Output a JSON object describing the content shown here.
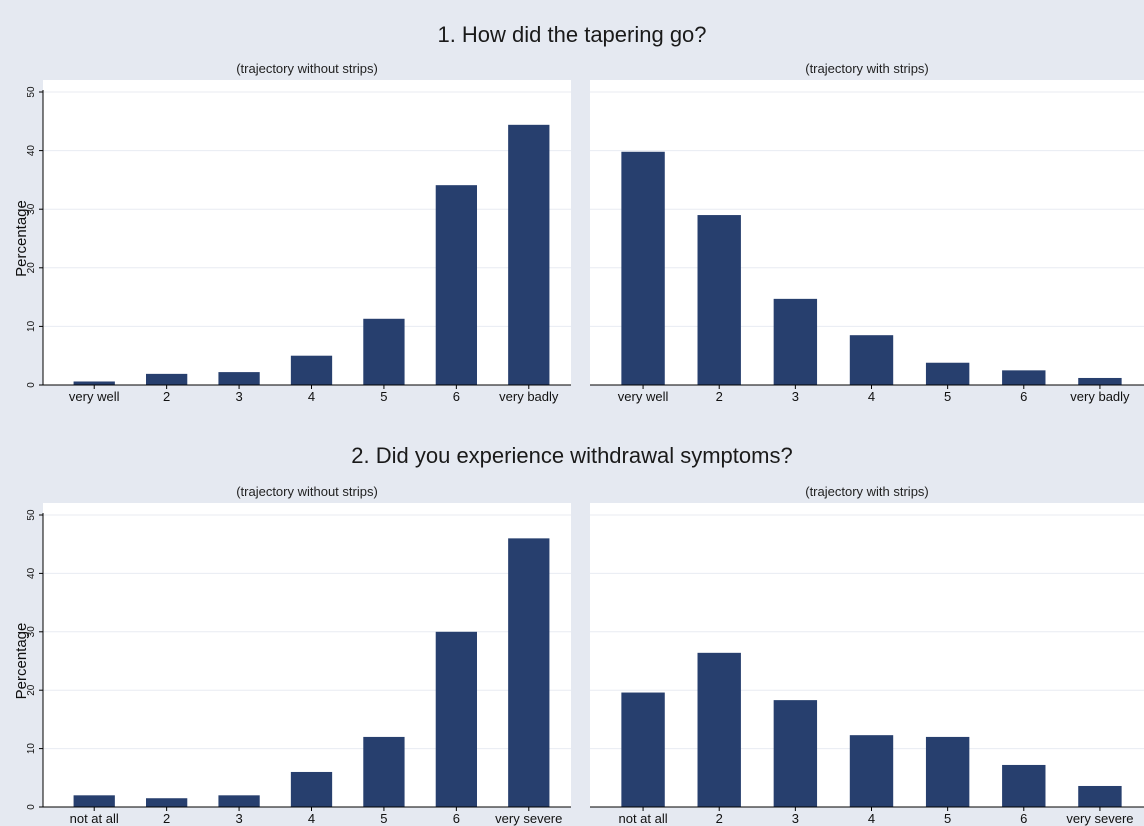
{
  "colors": {
    "background": "#e5e9f1",
    "plot_background": "#ffffff",
    "bar": "#273f6e",
    "gridline": "#e8ebf2",
    "axis": "#000000"
  },
  "chart_data": [
    {
      "type": "bar",
      "title": "1. How did the tapering go?",
      "subtitle": "(trajectory without strips)",
      "ylabel": "Percentage",
      "ylim": [
        0,
        50
      ],
      "yticks": [
        0,
        10,
        20,
        30,
        40,
        50
      ],
      "grid": true,
      "categories": [
        "very well",
        "2",
        "3",
        "4",
        "5",
        "6",
        "very badly"
      ],
      "values": [
        0.6,
        1.9,
        2.2,
        5.0,
        11.3,
        34.1,
        44.4
      ]
    },
    {
      "type": "bar",
      "title": "1. How did the tapering go?",
      "subtitle": "(trajectory with strips)",
      "ylabel": "Percentage",
      "ylim": [
        0,
        50
      ],
      "yticks": [
        0,
        10,
        20,
        30,
        40,
        50
      ],
      "grid": true,
      "categories": [
        "very well",
        "2",
        "3",
        "4",
        "5",
        "6",
        "very badly"
      ],
      "values": [
        39.8,
        29.0,
        14.7,
        8.5,
        3.8,
        2.5,
        1.2
      ]
    },
    {
      "type": "bar",
      "title": "2. Did you experience withdrawal symptoms?",
      "subtitle": "(trajectory without strips)",
      "ylabel": "Percentage",
      "ylim": [
        0,
        50
      ],
      "yticks": [
        0,
        10,
        20,
        30,
        40,
        50
      ],
      "grid": true,
      "categories": [
        "not at all",
        "2",
        "3",
        "4",
        "5",
        "6",
        "very severe"
      ],
      "values": [
        2.0,
        1.5,
        2.0,
        6.0,
        12.0,
        30.0,
        46.0
      ]
    },
    {
      "type": "bar",
      "title": "2. Did you experience withdrawal symptoms?",
      "subtitle": "(trajectory with strips)",
      "ylabel": "Percentage",
      "ylim": [
        0,
        50
      ],
      "yticks": [
        0,
        10,
        20,
        30,
        40,
        50
      ],
      "grid": true,
      "categories": [
        "not at all",
        "2",
        "3",
        "4",
        "5",
        "6",
        "very severe"
      ],
      "values": [
        19.6,
        26.4,
        18.3,
        12.3,
        12.0,
        7.2,
        3.6
      ]
    }
  ]
}
